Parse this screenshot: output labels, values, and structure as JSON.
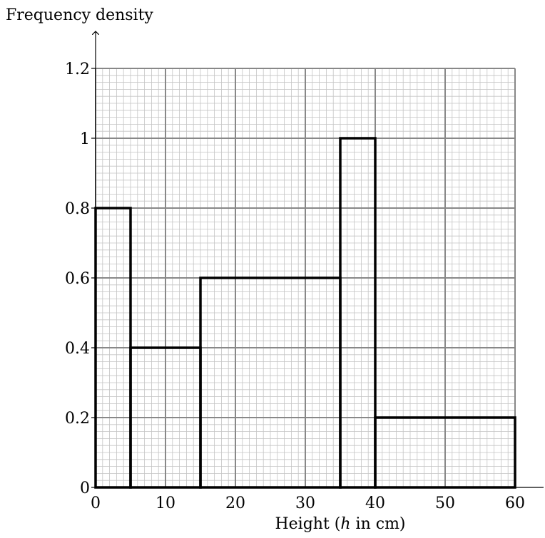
{
  "chart_data": {
    "type": "histogram",
    "title": "",
    "xlabel": "Height (h in cm)",
    "ylabel": "Frequency density",
    "xlim": [
      0,
      60
    ],
    "ylim": [
      0,
      1.2
    ],
    "x_ticks": [
      0,
      10,
      20,
      30,
      40,
      50,
      60
    ],
    "x_tick_labels": [
      "0",
      "10",
      "20",
      "30",
      "40",
      "50",
      "60"
    ],
    "y_ticks": [
      0,
      0.2,
      0.4,
      0.6,
      0.8,
      1,
      1.2
    ],
    "y_tick_labels": [
      "0",
      "0.2",
      "0.4",
      "0.6",
      "0.8",
      "1",
      "1.2"
    ],
    "grid": true,
    "minor_grid_step_x": 1,
    "minor_grid_step_y": 0.02,
    "bins": [
      {
        "x_start": 0,
        "x_end": 5,
        "frequency_density": 0.8
      },
      {
        "x_start": 5,
        "x_end": 15,
        "frequency_density": 0.4
      },
      {
        "x_start": 15,
        "x_end": 35,
        "frequency_density": 0.6
      },
      {
        "x_start": 35,
        "x_end": 40,
        "frequency_density": 1.0
      },
      {
        "x_start": 40,
        "x_end": 60,
        "frequency_density": 0.2
      }
    ],
    "colors": {
      "major_grid": "#888888",
      "minor_grid": "#c4c4c4",
      "bar_outline": "#000000",
      "background": "#ffffff"
    }
  }
}
